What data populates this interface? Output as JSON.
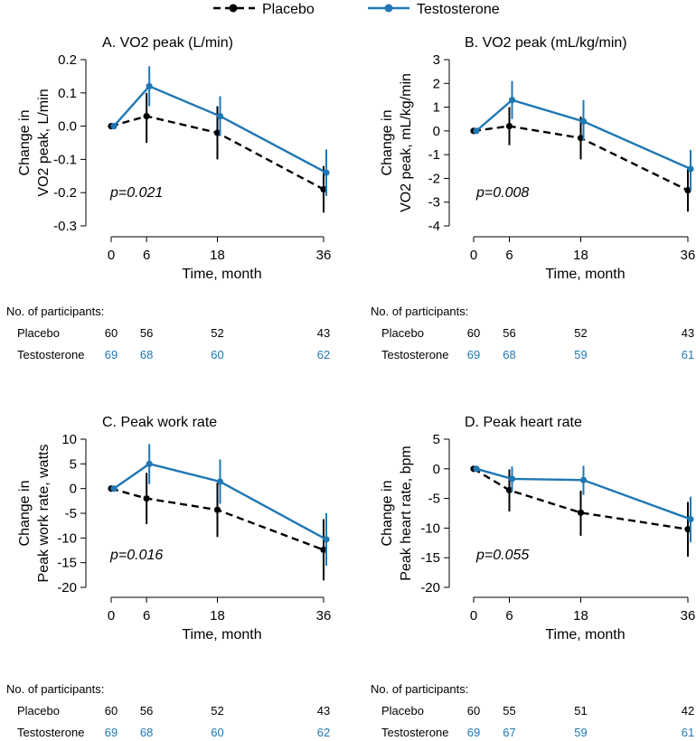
{
  "legend": {
    "placebo": "Placebo",
    "testosterone": "Testosterone"
  },
  "colors": {
    "placebo": "#000000",
    "testosterone": "#1f77b4"
  },
  "chart_data": [
    {
      "type": "line",
      "title": "A. VO2 peak (L/min)",
      "ylabel_lines": [
        "Change in",
        "VO2 peak, L/min"
      ],
      "xlabel": "Time, month",
      "x": [
        0,
        6,
        18,
        36
      ],
      "xticks": [
        "0",
        "6",
        "18",
        "36"
      ],
      "ylim": [
        -0.3,
        0.2
      ],
      "yticks": [
        0.2,
        0.1,
        0.0,
        -0.1,
        -0.2,
        -0.3
      ],
      "ytick_labels": [
        "0.2",
        "0.1",
        "0.0",
        "-0.1",
        "-0.2",
        "-0.3"
      ],
      "p_value": "p=0.021",
      "series": [
        {
          "name": "Placebo",
          "values": [
            0.0,
            0.03,
            -0.02,
            -0.19
          ],
          "lower": [
            0.0,
            -0.05,
            -0.1,
            -0.26
          ],
          "upper": [
            0.0,
            0.1,
            0.06,
            -0.12
          ]
        },
        {
          "name": "Testosterone",
          "values": [
            0.0,
            0.12,
            0.03,
            -0.14
          ],
          "lower": [
            0.0,
            0.06,
            -0.03,
            -0.21
          ],
          "upper": [
            0.0,
            0.18,
            0.09,
            -0.07
          ]
        }
      ],
      "participants": {
        "header": "No. of participants:",
        "placebo": [
          "60",
          "56",
          "52",
          "43"
        ],
        "testosterone": [
          "69",
          "68",
          "60",
          "62"
        ]
      }
    },
    {
      "type": "line",
      "title": "B. VO2 peak (mL/kg/min)",
      "ylabel_lines": [
        "Change in",
        "VO2 peak, mL/kg/min"
      ],
      "xlabel": "Time, month",
      "x": [
        0,
        6,
        18,
        36
      ],
      "xticks": [
        "0",
        "6",
        "18",
        "36"
      ],
      "ylim": [
        -4,
        3
      ],
      "yticks": [
        3,
        2,
        1,
        0,
        -1,
        -2,
        -3,
        -4
      ],
      "ytick_labels": [
        "3",
        "2",
        "1",
        "0",
        "-1",
        "-2",
        "-3",
        "-4"
      ],
      "p_value": "p=0.008",
      "series": [
        {
          "name": "Placebo",
          "values": [
            0.0,
            0.2,
            -0.3,
            -2.5
          ],
          "lower": [
            0.0,
            -0.6,
            -1.2,
            -3.4
          ],
          "upper": [
            0.0,
            1.0,
            0.6,
            -1.6
          ]
        },
        {
          "name": "Testosterone",
          "values": [
            0.0,
            1.3,
            0.4,
            -1.6
          ],
          "lower": [
            0.0,
            0.5,
            -0.4,
            -2.5
          ],
          "upper": [
            0.0,
            2.1,
            1.3,
            -0.8
          ]
        }
      ],
      "participants": {
        "header": "No. of participants:",
        "placebo": [
          "60",
          "56",
          "52",
          "43"
        ],
        "testosterone": [
          "69",
          "68",
          "59",
          "61"
        ]
      }
    },
    {
      "type": "line",
      "title": "C. Peak work rate",
      "ylabel_lines": [
        "Change in",
        "Peak work rate, watts"
      ],
      "xlabel": "Time, month",
      "x": [
        0,
        6,
        18,
        36
      ],
      "xticks": [
        "0",
        "6",
        "18",
        "36"
      ],
      "ylim": [
        -20,
        10
      ],
      "yticks": [
        10,
        5,
        0,
        -5,
        -10,
        -15,
        -20
      ],
      "ytick_labels": [
        "10",
        "5",
        "0",
        "-5",
        "-10",
        "-15",
        "-20"
      ],
      "p_value": "p=0.016",
      "series": [
        {
          "name": "Placebo",
          "values": [
            0.0,
            -2.0,
            -4.3,
            -12.4
          ],
          "lower": [
            0.0,
            -7.2,
            -9.8,
            -18.6
          ],
          "upper": [
            0.0,
            3.2,
            1.2,
            -6.2
          ]
        },
        {
          "name": "Testosterone",
          "values": [
            0.0,
            5.0,
            1.4,
            -10.3
          ],
          "lower": [
            0.0,
            0.9,
            -3.1,
            -15.6
          ],
          "upper": [
            0.0,
            9.0,
            5.9,
            -5.0
          ]
        }
      ],
      "participants": {
        "header": "No. of participants:",
        "placebo": [
          "60",
          "56",
          "52",
          "43"
        ],
        "testosterone": [
          "69",
          "68",
          "60",
          "62"
        ]
      }
    },
    {
      "type": "line",
      "title": "D. Peak heart rate",
      "ylabel_lines": [
        "Change in",
        "Peak heart rate, bpm"
      ],
      "xlabel": "Time, month",
      "x": [
        0,
        6,
        18,
        36
      ],
      "xticks": [
        "0",
        "6",
        "18",
        "36"
      ],
      "ylim": [
        -20,
        5
      ],
      "yticks": [
        5,
        0,
        -5,
        -10,
        -15,
        -20
      ],
      "ytick_labels": [
        "5",
        "0",
        "-5",
        "-10",
        "-15",
        "-20"
      ],
      "p_value": "p=0.055",
      "series": [
        {
          "name": "Placebo",
          "values": [
            0.0,
            -3.6,
            -7.4,
            -10.2
          ],
          "lower": [
            0.0,
            -7.2,
            -11.3,
            -14.8
          ],
          "upper": [
            0.0,
            -0.1,
            -3.7,
            -5.6
          ]
        },
        {
          "name": "Testosterone",
          "values": [
            0.0,
            -1.7,
            -1.9,
            -8.5
          ],
          "lower": [
            0.0,
            -3.9,
            -4.4,
            -12.4
          ],
          "upper": [
            0.0,
            0.4,
            0.5,
            -4.7
          ]
        }
      ],
      "participants": {
        "header": "No. of participants:",
        "placebo": [
          "60",
          "55",
          "51",
          "42"
        ],
        "testosterone": [
          "69",
          "67",
          "59",
          "61"
        ]
      }
    }
  ]
}
